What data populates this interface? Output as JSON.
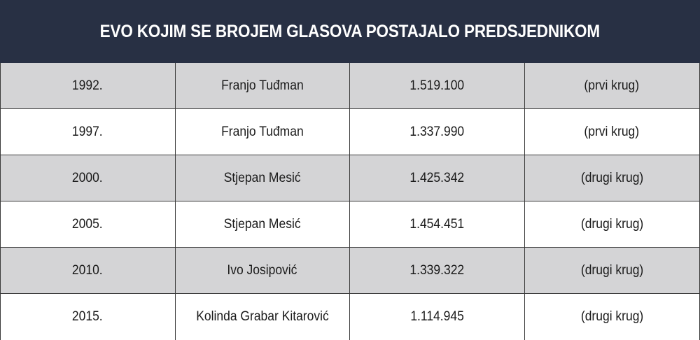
{
  "title": "EVO KOJIM SE BROJEM GLASOVA POSTAJALO PREDSJEDNIKOM",
  "colors": {
    "header_bg": "#283044",
    "header_text": "#ffffff",
    "row_shaded": "#d4d4d6",
    "row_plain": "#ffffff",
    "border": "#3a3a3a"
  },
  "chart_data": {
    "type": "table",
    "title": "EVO KOJIM SE BROJEM GLASOVA POSTAJALO PREDSJEDNIKOM",
    "rows": [
      {
        "year": "1992.",
        "name": "Franjo Tuđman",
        "votes": "1.519.100",
        "round": "(prvi krug)"
      },
      {
        "year": "1997.",
        "name": "Franjo Tuđman",
        "votes": "1.337.990",
        "round": "(prvi krug)"
      },
      {
        "year": "2000.",
        "name": "Stjepan Mesić",
        "votes": "1.425.342",
        "round": "(drugi krug)"
      },
      {
        "year": "2005.",
        "name": "Stjepan Mesić",
        "votes": "1.454.451",
        "round": "(drugi krug)"
      },
      {
        "year": "2010.",
        "name": "Ivo Josipović",
        "votes": "1.339.322",
        "round": "(drugi krug)"
      },
      {
        "year": "2015.",
        "name": "Kolinda Grabar Kitarović",
        "votes": "1.114.945",
        "round": "(drugi krug)"
      }
    ]
  }
}
